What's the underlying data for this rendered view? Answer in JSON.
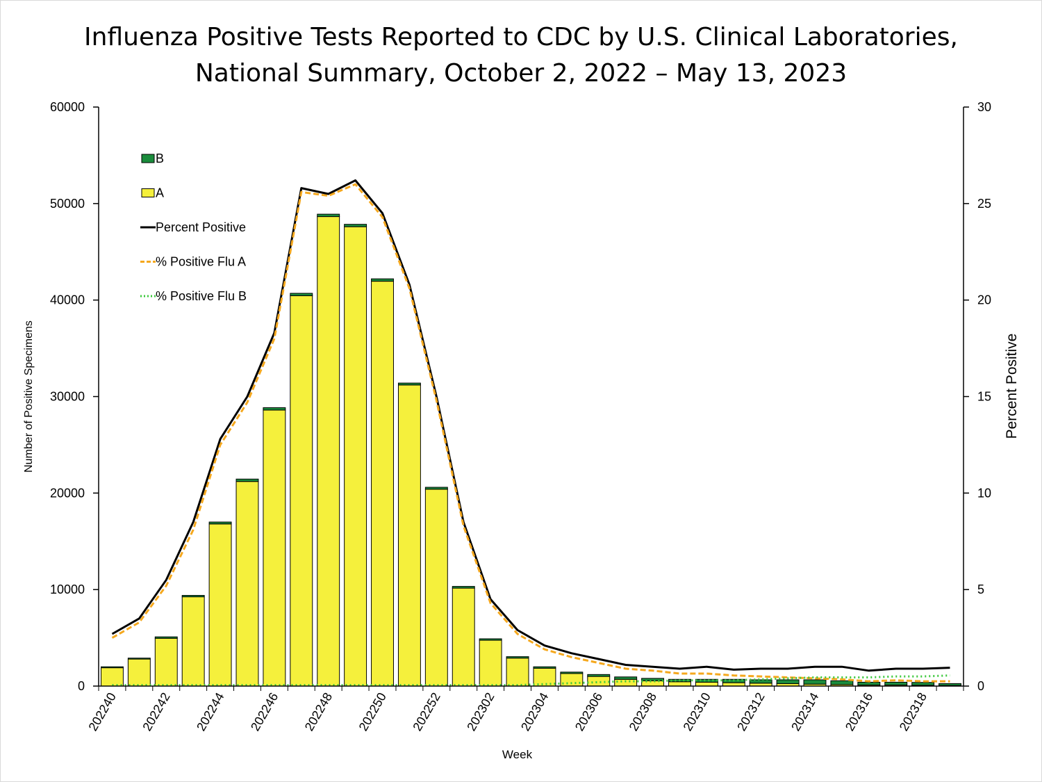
{
  "title": {
    "line1": "Influenza Positive Tests Reported to CDC by U.S. Clinical Laboratories,",
    "line2": "National Summary, October 2, 2022 – May 13, 2023"
  },
  "chart_data": {
    "type": "bar",
    "stacked": true,
    "title": "Influenza Positive Tests Reported to CDC by U.S. Clinical Laboratories, National Summary, October 2, 2022 – May 13, 2023",
    "xlabel": "Week",
    "ylabel_left": "Number of Positive Specimens",
    "ylabel_right": "Percent Positive",
    "ylim_left": [
      0,
      60000
    ],
    "ylim_right": [
      0,
      30
    ],
    "yticks_left": [
      "0",
      "10000",
      "20000",
      "30000",
      "40000",
      "50000",
      "60000"
    ],
    "yticks_right": [
      "0",
      "5",
      "10",
      "15",
      "20",
      "25",
      "30"
    ],
    "grid": false,
    "legend_position": "top-left",
    "categories": [
      "202240",
      "202241",
      "202242",
      "202243",
      "202244",
      "202245",
      "202246",
      "202247",
      "202248",
      "202249",
      "202250",
      "202251",
      "202252",
      "202301",
      "202302",
      "202303",
      "202304",
      "202305",
      "202306",
      "202307",
      "202308",
      "202309",
      "202310",
      "202311",
      "202312",
      "202313",
      "202314",
      "202315",
      "202316",
      "202317",
      "202318",
      "202319"
    ],
    "x_tick_labels": [
      "202240",
      "202242",
      "202244",
      "202246",
      "202248",
      "202250",
      "202252",
      "202302",
      "202304",
      "202306",
      "202308",
      "202310",
      "202312",
      "202314",
      "202316",
      "202318"
    ],
    "series": [
      {
        "name": "B",
        "kind": "bar",
        "color": "#1a8c3c",
        "values": [
          100,
          100,
          150,
          150,
          200,
          250,
          250,
          250,
          250,
          250,
          250,
          200,
          200,
          180,
          150,
          150,
          150,
          150,
          200,
          250,
          250,
          250,
          300,
          350,
          350,
          400,
          450,
          400,
          300,
          300,
          300,
          200
        ]
      },
      {
        "name": "A",
        "kind": "bar",
        "color": "#f5f03c",
        "values": [
          1900,
          2800,
          4950,
          9250,
          16800,
          21200,
          28600,
          40450,
          48650,
          47600,
          41950,
          31200,
          20400,
          10150,
          4750,
          2900,
          1850,
          1300,
          1000,
          700,
          550,
          450,
          400,
          350,
          300,
          250,
          200,
          150,
          100,
          100,
          80,
          60
        ]
      },
      {
        "name": "Percent Positive",
        "kind": "line",
        "axis": "right",
        "color": "#000000",
        "values": [
          2.7,
          3.5,
          5.5,
          8.5,
          12.8,
          15.0,
          18.3,
          25.8,
          25.5,
          26.2,
          24.5,
          20.8,
          15.0,
          8.5,
          4.5,
          2.9,
          2.1,
          1.7,
          1.4,
          1.1,
          1.0,
          0.9,
          1.0,
          0.85,
          0.9,
          0.9,
          1.0,
          1.0,
          0.8,
          0.9,
          0.9,
          0.95
        ]
      },
      {
        "name": "% Positive Flu A",
        "kind": "line",
        "axis": "right",
        "color": "#f5a81e",
        "dash": "dashed",
        "values": [
          2.5,
          3.3,
          5.2,
          8.1,
          12.5,
          14.7,
          18.0,
          25.6,
          25.4,
          26.0,
          24.3,
          20.6,
          14.8,
          8.3,
          4.3,
          2.7,
          1.9,
          1.5,
          1.2,
          0.9,
          0.8,
          0.65,
          0.65,
          0.55,
          0.5,
          0.45,
          0.4,
          0.35,
          0.25,
          0.3,
          0.25,
          0.25
        ]
      },
      {
        "name": "% Positive Flu B",
        "kind": "line",
        "axis": "right",
        "color": "#3cc83c",
        "dash": "dotted",
        "values": [
          0.05,
          0.05,
          0.05,
          0.05,
          0.05,
          0.05,
          0.05,
          0.05,
          0.05,
          0.05,
          0.05,
          0.05,
          0.05,
          0.05,
          0.05,
          0.05,
          0.1,
          0.15,
          0.2,
          0.25,
          0.25,
          0.3,
          0.3,
          0.3,
          0.35,
          0.4,
          0.45,
          0.45,
          0.45,
          0.5,
          0.5,
          0.55
        ]
      }
    ]
  }
}
